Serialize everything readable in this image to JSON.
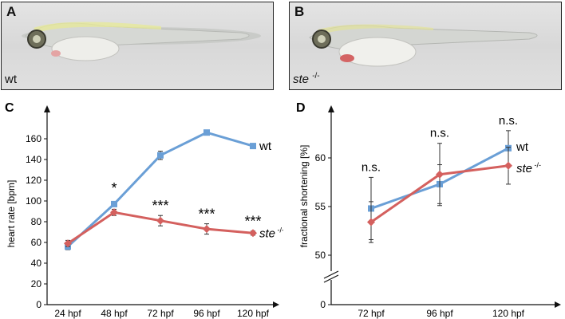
{
  "panels": {
    "a": {
      "letter": "A",
      "label": "wt"
    },
    "b": {
      "letter": "B",
      "label": "ste",
      "label_sup": "-/-"
    }
  },
  "colors": {
    "wt": "#6a9fd6",
    "ste": "#d4605e",
    "axis": "#111111"
  },
  "chart_data": [
    {
      "panel": "C",
      "type": "line",
      "ylabel": "heart rate [bpm]",
      "xlabel": "",
      "categories": [
        "24 hpf",
        "48 hpf",
        "72 hpf",
        "96 hpf",
        "120 hpf"
      ],
      "ylim": [
        0,
        180
      ],
      "yticks": [
        0,
        20,
        40,
        60,
        80,
        100,
        120,
        140,
        160
      ],
      "grid": false,
      "series": [
        {
          "name": "wt",
          "values": [
            56,
            97,
            144,
            166,
            153
          ],
          "errors": [
            3,
            2,
            4,
            2,
            2
          ]
        },
        {
          "name": "ste -/-",
          "values": [
            59,
            89,
            81,
            73,
            69
          ],
          "errors": [
            3,
            3,
            5,
            5,
            2
          ]
        }
      ],
      "annotations": [
        "",
        "*",
        "***",
        "***",
        "***"
      ]
    },
    {
      "panel": "D",
      "type": "line",
      "ylabel": "fractional shortening [%]",
      "xlabel": "",
      "categories": [
        "72 hpf",
        "96 hpf",
        "120 hpf"
      ],
      "ylim": [
        0,
        65
      ],
      "axis_break": true,
      "yticks": [
        0,
        50,
        55,
        60
      ],
      "grid": false,
      "series": [
        {
          "name": "wt",
          "values": [
            54.8,
            57.3,
            61.0
          ],
          "errors": [
            3.2,
            2.0,
            1.8
          ]
        },
        {
          "name": "ste -/-",
          "values": [
            53.4,
            58.3,
            59.2
          ],
          "errors": [
            2.1,
            3.2,
            1.9
          ]
        }
      ],
      "annotations": [
        "n.s.",
        "n.s.",
        "n.s."
      ]
    }
  ]
}
